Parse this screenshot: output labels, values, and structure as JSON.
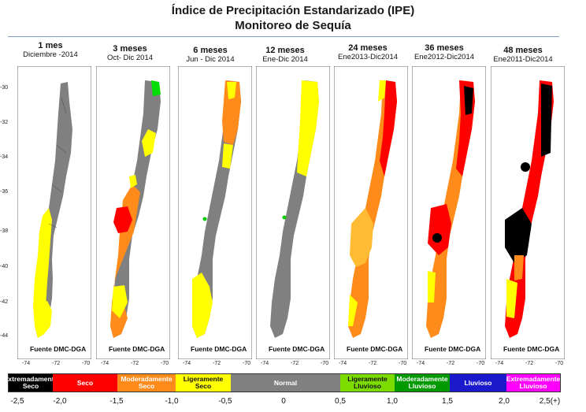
{
  "title": {
    "line1": "Índice de Precipitación Estandarizado (IPE)",
    "line2": "Monitoreo de Sequía"
  },
  "panels": [
    {
      "period": "1 mes",
      "range": "Diciembre -2014",
      "source": "Fuente DMC-DGA"
    },
    {
      "period": "3 meses",
      "range": "Oct- Dic 2014",
      "source": "Fuente DMC-DGA"
    },
    {
      "period": "6 meses",
      "range": "Jun - Dic 2014",
      "source": "Fuente DMC-DGA"
    },
    {
      "period": "12 meses",
      "range": "Ene-Dic 2014",
      "source": "Fuente DMC-DGA"
    },
    {
      "period": "24 meses",
      "range": "Ene2013-Dic2014",
      "source": "Fuente DMC-DGA"
    },
    {
      "period": "36 meses",
      "range": "Ene2012-Dic2014",
      "source": "Fuente DMC-DGA"
    },
    {
      "period": "48 meses",
      "range": "Ene2011-Dic2014",
      "source": "Fuente DMC-DGA"
    }
  ],
  "axes": {
    "lat_ticks": [
      "-30",
      "-32",
      "-34",
      "-36",
      "-38",
      "-40",
      "-42",
      "-44"
    ],
    "lon_ticks": [
      "-74",
      "-72",
      "-70"
    ]
  },
  "legend": {
    "categories": [
      {
        "label1": "Extremadamente",
        "label2": "Seco",
        "color": "#000000",
        "text_color": "#ffffff"
      },
      {
        "label1": "Seco",
        "label2": "",
        "color": "#ff0000",
        "text_color": "#ffffff"
      },
      {
        "label1": "Moderadamente",
        "label2": "Seco",
        "color": "#ff8c1a",
        "text_color": "#ffffff"
      },
      {
        "label1": "Ligeramente",
        "label2": "Seco",
        "color": "#ffff00",
        "text_color": "#111111"
      },
      {
        "label1": "Normal",
        "label2": "",
        "color": "#808080",
        "text_color": "#ffffff"
      },
      {
        "label1": "Ligeramente",
        "label2": "Lluvioso",
        "color": "#7cdc00",
        "text_color": "#111111"
      },
      {
        "label1": "Moderadamente",
        "label2": "Lluvioso",
        "color": "#009900",
        "text_color": "#ffffff"
      },
      {
        "label1": "Lluvioso",
        "label2": "",
        "color": "#1a1acc",
        "text_color": "#ffffff"
      },
      {
        "label1": "Extremadamente",
        "label2": "Lluvioso",
        "color": "#ff00ff",
        "text_color": "#ffffff"
      }
    ],
    "thresholds": [
      "-2,5",
      "-2,0",
      "-1,5",
      "-1,0",
      "-0,5",
      "0",
      "0,5",
      "1,0",
      "1,5",
      "2,0",
      "2,5(+)"
    ]
  }
}
